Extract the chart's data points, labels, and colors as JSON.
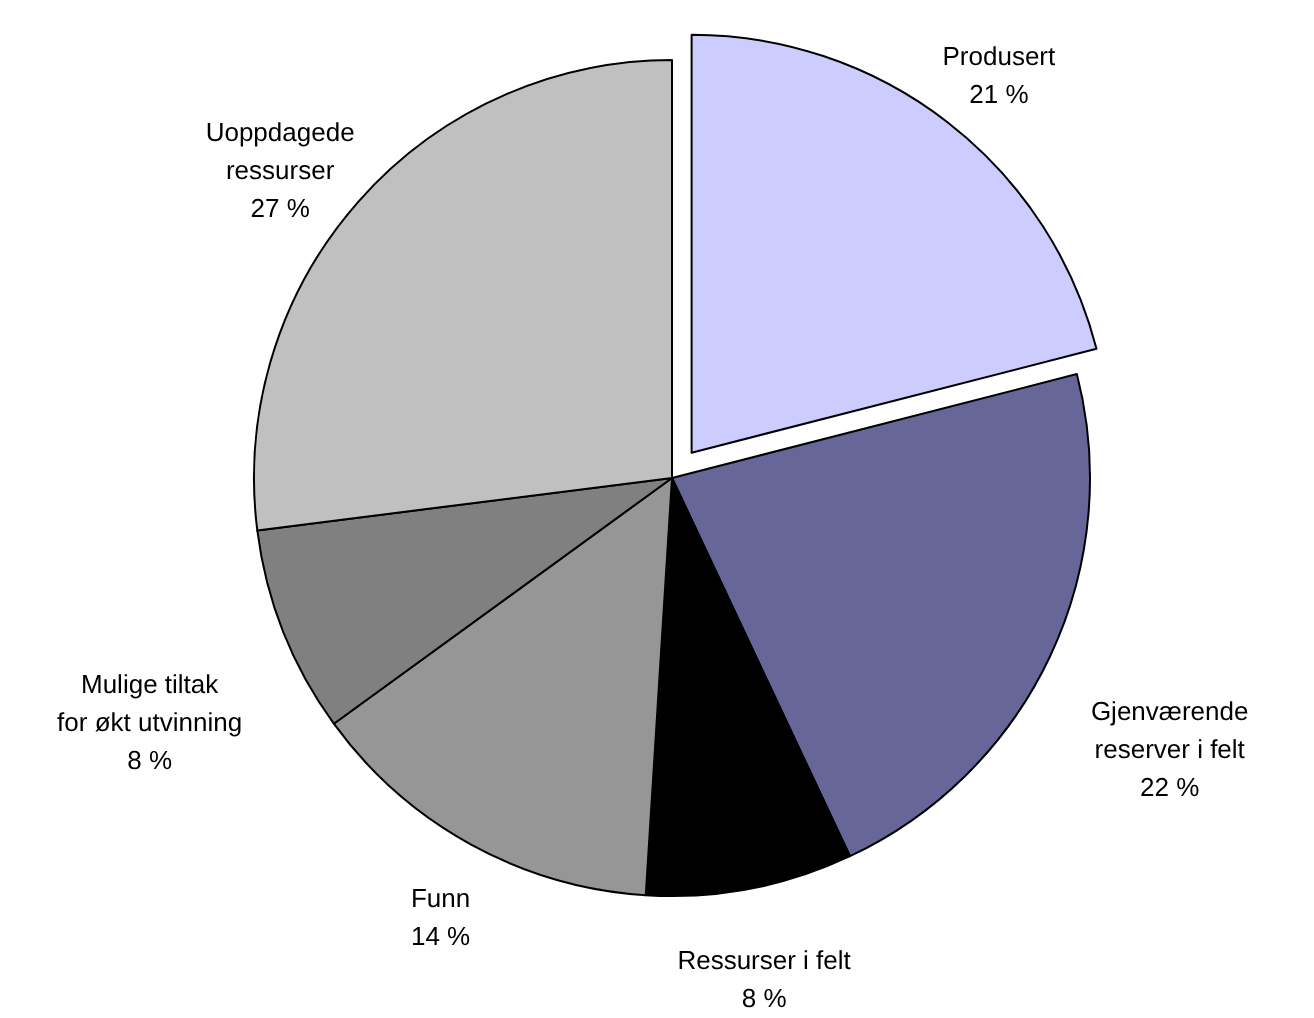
{
  "chart_data": {
    "type": "pie",
    "categories": [
      "Produsert",
      "Gjenværende\nreserver i felt",
      "Ressurser i felt",
      "Funn",
      "Mulige tiltak\nfor økt utvinning",
      "Uoppdagede\nressurser"
    ],
    "values": [
      21,
      22,
      8,
      14,
      8,
      27
    ],
    "value_labels": [
      "21 %",
      "22 %",
      "8 %",
      "14 %",
      "8 %",
      "27 %"
    ],
    "colors": [
      "#ccccff",
      "#666699",
      "#000000",
      "#969696",
      "#808080",
      "#c0c0c0"
    ]
  }
}
